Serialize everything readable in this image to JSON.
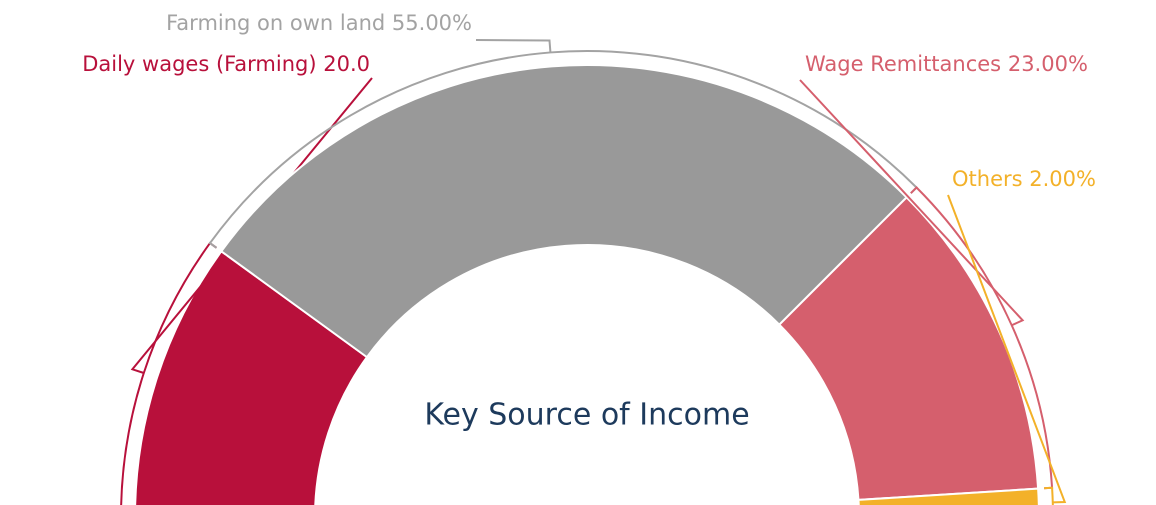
{
  "chart_data": {
    "type": "semi-donut",
    "center_text": "Key Source of Income",
    "categories": [
      "Daily wages (Farming)",
      "Farming on own land",
      "Wage Remittances",
      "Others"
    ],
    "values": [
      20,
      55,
      23,
      2
    ],
    "value_labels": [
      "20.0",
      "55.00%",
      "23.00%",
      "2.00%"
    ],
    "colors": [
      "#b8103b",
      "#999999",
      "#d55f6d",
      "#f3b129"
    ],
    "label_colors": [
      "#b8103b",
      "#a3a3a3",
      "#d55f6d",
      "#f3b129"
    ]
  }
}
